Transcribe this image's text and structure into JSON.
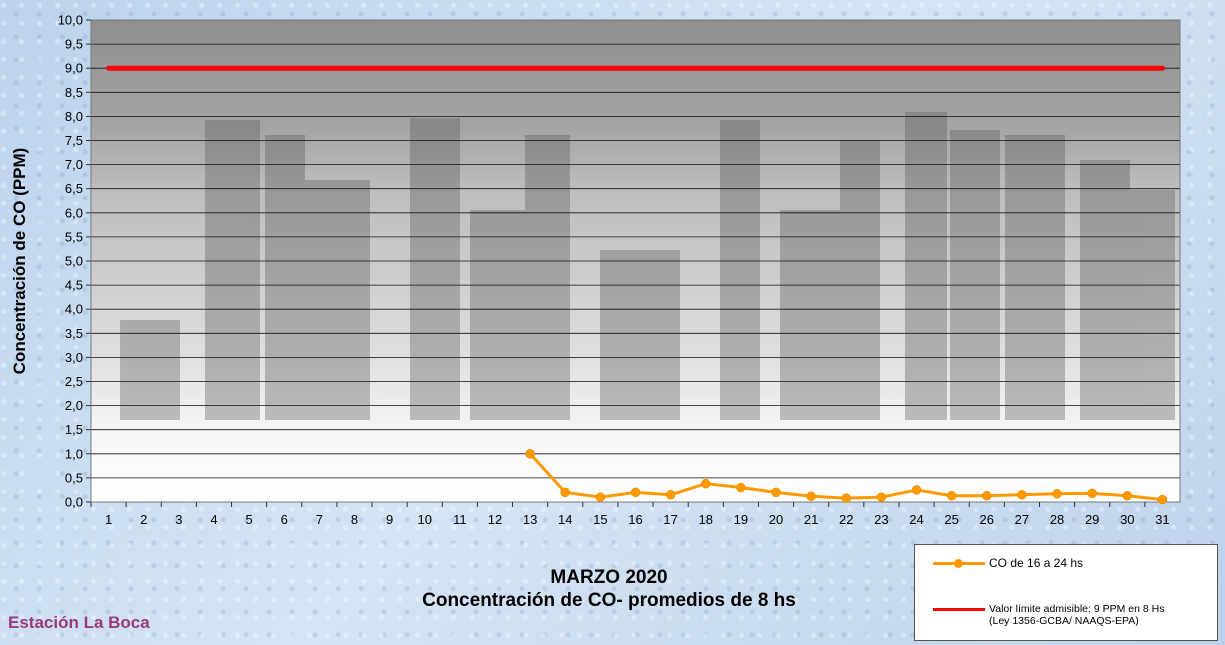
{
  "chart_data": {
    "type": "line",
    "title": "MARZO 2020",
    "subtitle": "Concentración de CO- promedios de 8 hs",
    "xlabel": "",
    "ylabel": "Concentración de CO (PPM)",
    "ylim": [
      0,
      10
    ],
    "y_ticks": [
      "0,0",
      "0,5",
      "1,0",
      "1,5",
      "2,0",
      "2,5",
      "3,0",
      "3,5",
      "4,0",
      "4,5",
      "5,0",
      "5,5",
      "6,0",
      "6,5",
      "7,0",
      "7,5",
      "8,0",
      "8,5",
      "9,0",
      "9,5",
      "10,0"
    ],
    "categories": [
      "1",
      "2",
      "3",
      "4",
      "5",
      "6",
      "7",
      "8",
      "9",
      "10",
      "11",
      "12",
      "13",
      "14",
      "15",
      "16",
      "17",
      "18",
      "19",
      "20",
      "21",
      "22",
      "23",
      "24",
      "25",
      "26",
      "27",
      "28",
      "29",
      "30",
      "31"
    ],
    "grid": true,
    "legend_position": "bottom-right",
    "series": [
      {
        "name": "CO de 16 a 24 hs",
        "color": "#ff9900",
        "marker": "circle",
        "values": [
          null,
          null,
          null,
          null,
          null,
          null,
          null,
          null,
          null,
          null,
          null,
          null,
          1.0,
          0.2,
          0.1,
          0.2,
          0.15,
          0.38,
          0.3,
          0.2,
          0.12,
          0.08,
          0.1,
          0.25,
          0.13,
          0.13,
          0.15,
          0.17,
          0.18,
          0.13,
          0.05
        ]
      },
      {
        "name": "Valor límite admisible: 9 PPM en 8 Hs\n(Ley 1356-GCBA/ NAAQS-EPA)",
        "color": "#ff0000",
        "marker": "none",
        "values": [
          9,
          9,
          9,
          9,
          9,
          9,
          9,
          9,
          9,
          9,
          9,
          9,
          9,
          9,
          9,
          9,
          9,
          9,
          9,
          9,
          9,
          9,
          9,
          9,
          9,
          9,
          9,
          9,
          9,
          9,
          9
        ]
      }
    ]
  },
  "footer": {
    "station": "Estación La Boca"
  },
  "legend": {
    "items": [
      {
        "label": "CO de 16 a 24 hs",
        "color": "#ff9900",
        "marker": "circle"
      },
      {
        "label": "Valor límite admisible: 9 PPM en 8 Hs\n(Ley 1356-GCBA/ NAAQS-EPA)",
        "color": "#ff0000",
        "marker": "none"
      }
    ]
  }
}
